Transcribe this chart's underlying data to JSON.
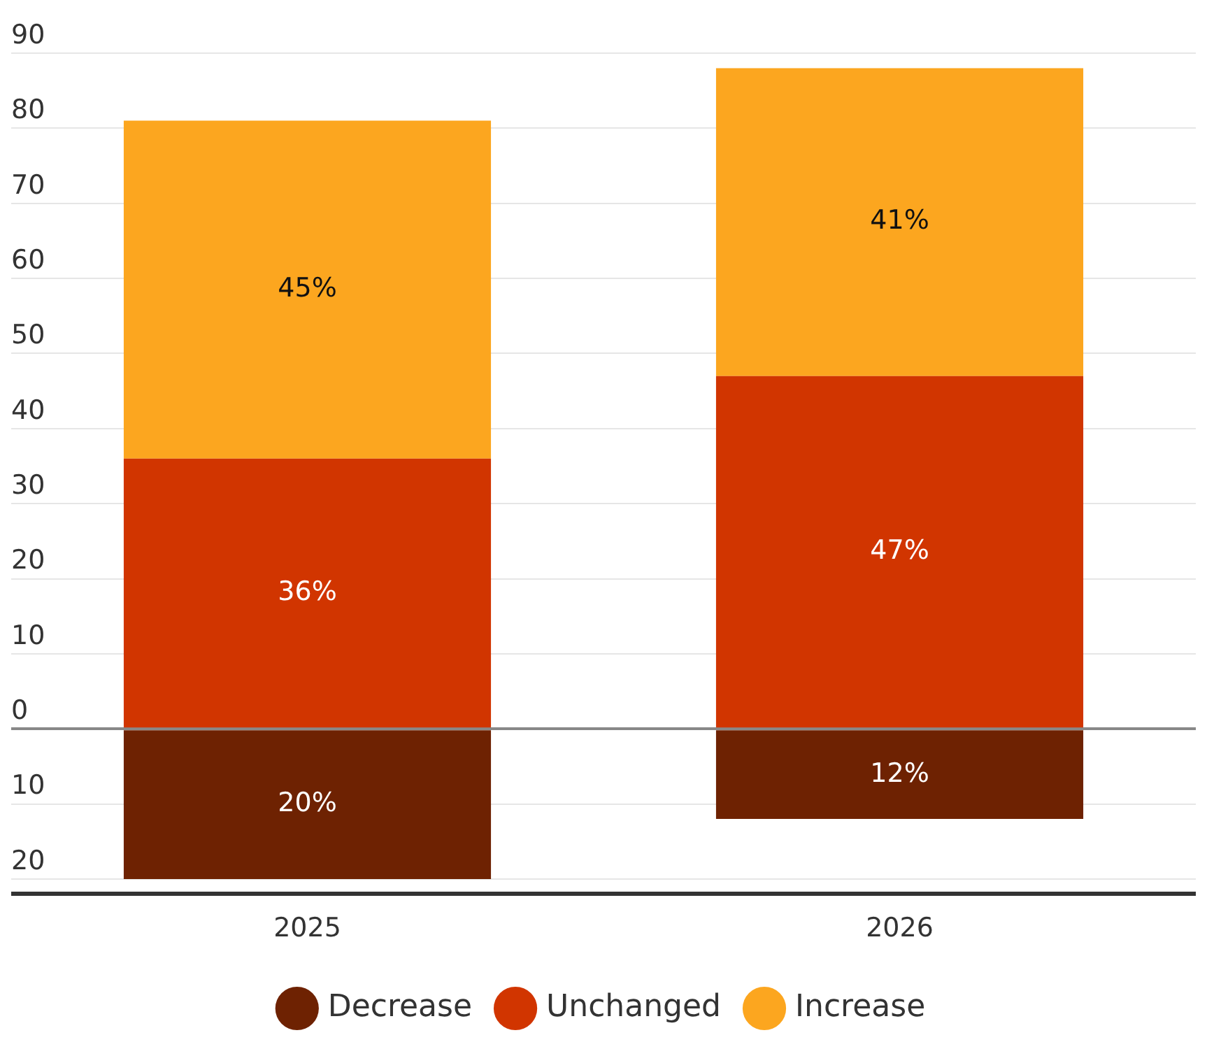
{
  "chart_data": {
    "type": "bar",
    "categories": [
      "2025",
      "2026"
    ],
    "series": [
      {
        "name": "Decrease",
        "color": "#6e2202",
        "values": [
          20,
          12
        ],
        "base": [
          -20,
          -12
        ],
        "value_labels": [
          "20%",
          "12%"
        ]
      },
      {
        "name": "Unchanged",
        "color": "#d13500",
        "values": [
          36,
          47
        ],
        "base": [
          0,
          0
        ],
        "value_labels": [
          "36%",
          "47%"
        ]
      },
      {
        "name": "Increase",
        "color": "#fca61f",
        "values": [
          45,
          41
        ],
        "base": [
          36,
          47
        ],
        "value_labels": [
          "45%",
          "41%"
        ]
      }
    ],
    "ylim": [
      -22,
      90
    ],
    "yticks": [
      {
        "value": -20,
        "label": "20"
      },
      {
        "value": -10,
        "label": "10"
      },
      0,
      10,
      20,
      30,
      40,
      50,
      60,
      70,
      80,
      90
    ],
    "grid": "y",
    "legend": "bottom",
    "marker": "circle"
  }
}
